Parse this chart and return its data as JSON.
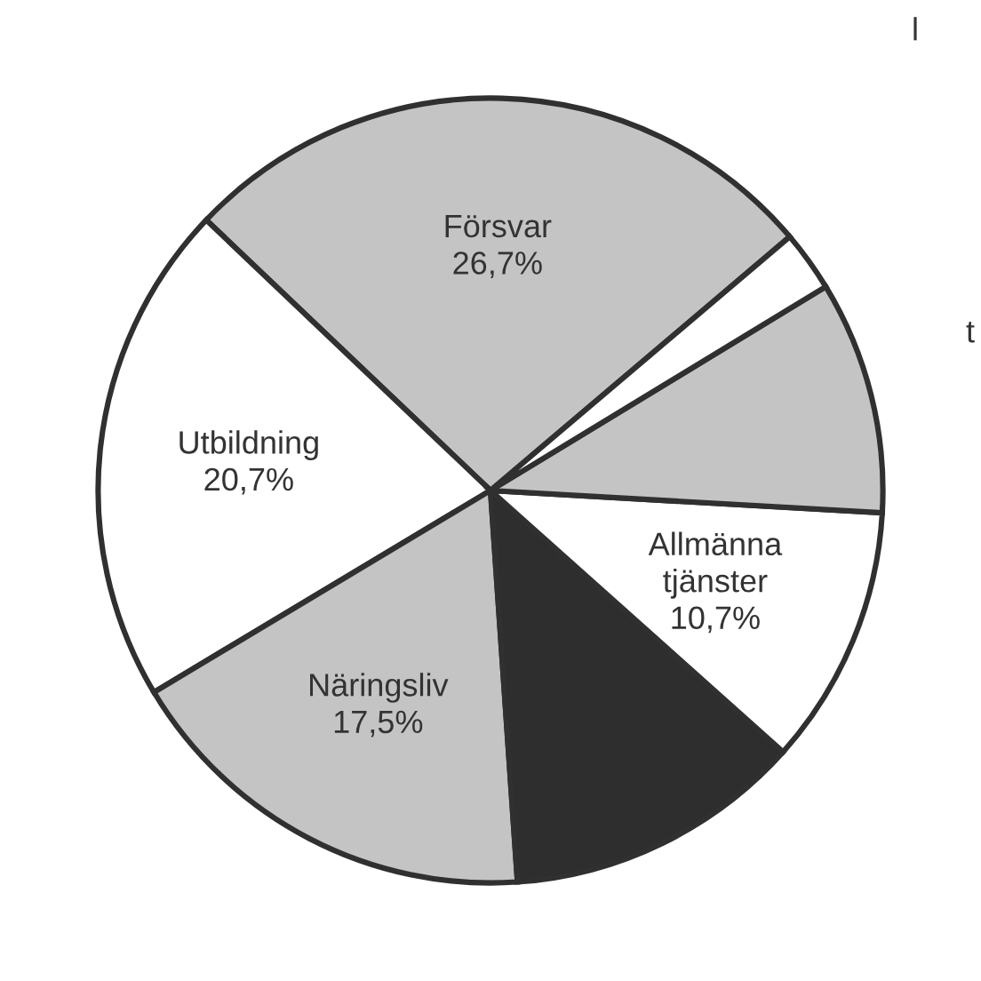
{
  "chart_data": {
    "type": "pie",
    "categories": [
      "Försvar",
      "Utbildning",
      "Näringsliv",
      null,
      "Allmänna\ntjänster",
      null,
      null
    ],
    "values": [
      26.7,
      20.7,
      17.5,
      12.3,
      10.7,
      9.6,
      2.5
    ],
    "value_labels": [
      "26,7%",
      "20,7%",
      "17,5%",
      null,
      "10,7%",
      null,
      null
    ],
    "colors": [
      "#c4c4c4",
      "#ffffff",
      "#c4c4c4",
      "#2e2e2e",
      "#ffffff",
      "#c4c4c4",
      "#ffffff"
    ],
    "annotations": [
      "l",
      "t"
    ]
  }
}
